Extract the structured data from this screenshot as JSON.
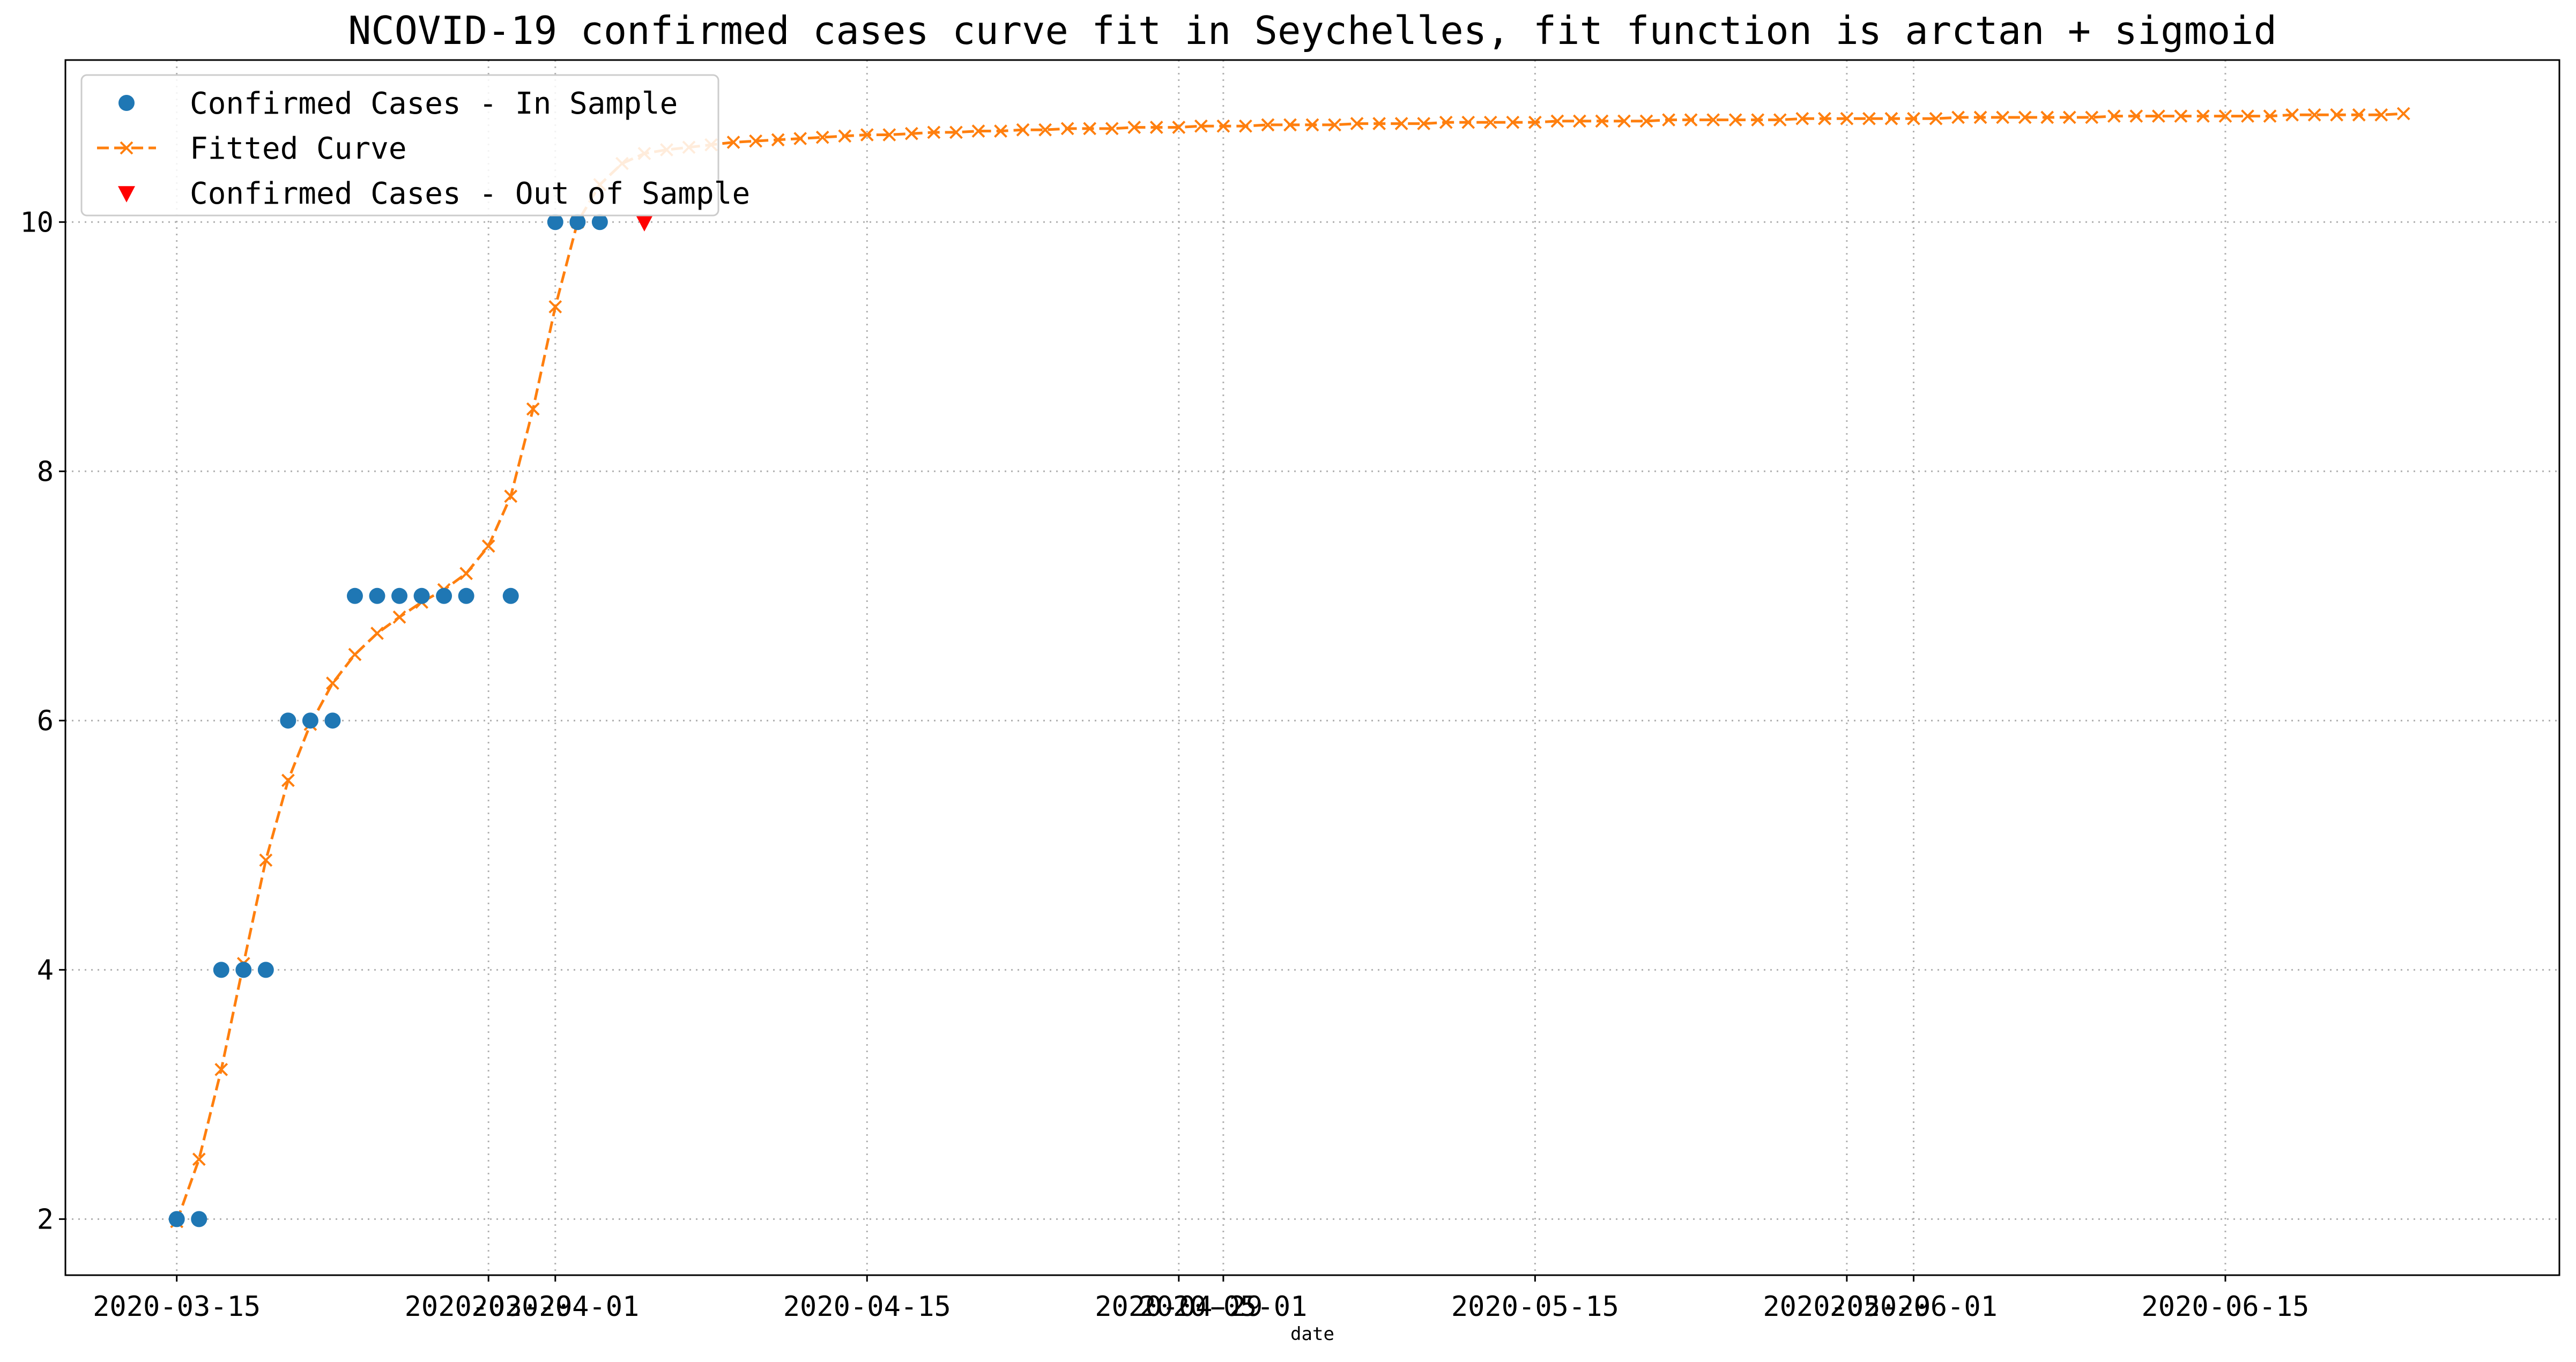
{
  "chart_data": {
    "type": "line",
    "title": "NCOVID-19 confirmed cases curve fit in Seychelles, fit function is arctan + sigmoid",
    "xlabel": "date",
    "ylabel": "",
    "x_axis_type": "date",
    "xlim": [
      "2020-03-10",
      "2020-06-30"
    ],
    "ylim": [
      1.55,
      11.3
    ],
    "grid": true,
    "grid_style": "dotted",
    "legend_position": "top-left",
    "x_ticks": [
      {
        "label": "2020-03-15",
        "date": "2020-03-15"
      },
      {
        "label": "2020-03-29",
        "date": "2020-03-29"
      },
      {
        "label": "2020-04-01",
        "date": "2020-04-01"
      },
      {
        "label": "2020-04-15",
        "date": "2020-04-15"
      },
      {
        "label": "2020-04-29",
        "date": "2020-04-29"
      },
      {
        "label": "2020-05-01",
        "date": "2020-05-01"
      },
      {
        "label": "2020-05-15",
        "date": "2020-05-15"
      },
      {
        "label": "2020-05-29",
        "date": "2020-05-29"
      },
      {
        "label": "2020-06-01",
        "date": "2020-06-01"
      },
      {
        "label": "2020-06-15",
        "date": "2020-06-15"
      }
    ],
    "y_ticks": [
      2,
      4,
      6,
      8,
      10
    ],
    "series": [
      {
        "name": "Confirmed Cases - In Sample",
        "style": "markers",
        "marker": "circle",
        "color": "#1f77b4",
        "points": [
          {
            "x": "2020-03-15",
            "y": 2
          },
          {
            "x": "2020-03-16",
            "y": 2
          },
          {
            "x": "2020-03-17",
            "y": 4
          },
          {
            "x": "2020-03-18",
            "y": 4
          },
          {
            "x": "2020-03-19",
            "y": 4
          },
          {
            "x": "2020-03-20",
            "y": 6
          },
          {
            "x": "2020-03-21",
            "y": 6
          },
          {
            "x": "2020-03-22",
            "y": 6
          },
          {
            "x": "2020-03-23",
            "y": 7
          },
          {
            "x": "2020-03-24",
            "y": 7
          },
          {
            "x": "2020-03-25",
            "y": 7
          },
          {
            "x": "2020-03-26",
            "y": 7
          },
          {
            "x": "2020-03-27",
            "y": 7
          },
          {
            "x": "2020-03-28",
            "y": 7
          },
          {
            "x": "2020-03-30",
            "y": 7
          },
          {
            "x": "2020-04-01",
            "y": 10
          },
          {
            "x": "2020-04-02",
            "y": 10
          },
          {
            "x": "2020-04-03",
            "y": 10
          }
        ]
      },
      {
        "name": "Fitted Curve",
        "style": "dashed-line-x-markers",
        "marker": "x",
        "color": "#ff7f0e",
        "x_start": "2020-03-15",
        "x_step_days": 1,
        "values": [
          1.98,
          2.48,
          3.2,
          4.05,
          4.88,
          5.52,
          5.97,
          6.3,
          6.53,
          6.7,
          6.83,
          6.95,
          7.05,
          7.18,
          7.4,
          7.8,
          8.5,
          9.32,
          10.0,
          10.3,
          10.47,
          10.55,
          10.58,
          10.6,
          10.62,
          10.64,
          10.65,
          10.66,
          10.67,
          10.68,
          10.69,
          10.7,
          10.7,
          10.71,
          10.72,
          10.72,
          10.73,
          10.73,
          10.74,
          10.74,
          10.75,
          10.75,
          10.75,
          10.76,
          10.76,
          10.76,
          10.77,
          10.77,
          10.77,
          10.78,
          10.78,
          10.78,
          10.78,
          10.79,
          10.79,
          10.79,
          10.79,
          10.8,
          10.8,
          10.8,
          10.8,
          10.8,
          10.81,
          10.81,
          10.81,
          10.81,
          10.81,
          10.82,
          10.82,
          10.82,
          10.82,
          10.82,
          10.82,
          10.83,
          10.83,
          10.83,
          10.83,
          10.83,
          10.83,
          10.83,
          10.84,
          10.84,
          10.84,
          10.84,
          10.84,
          10.84,
          10.84,
          10.85,
          10.85,
          10.85,
          10.85,
          10.85,
          10.85,
          10.85,
          10.85,
          10.86,
          10.86,
          10.86,
          10.86,
          10.86,
          10.87
        ]
      },
      {
        "name": "Confirmed Cases - Out of Sample",
        "style": "markers",
        "marker": "triangle-down",
        "color": "#ff0000",
        "points": [
          {
            "x": "2020-04-05",
            "y": 10
          }
        ]
      }
    ]
  }
}
